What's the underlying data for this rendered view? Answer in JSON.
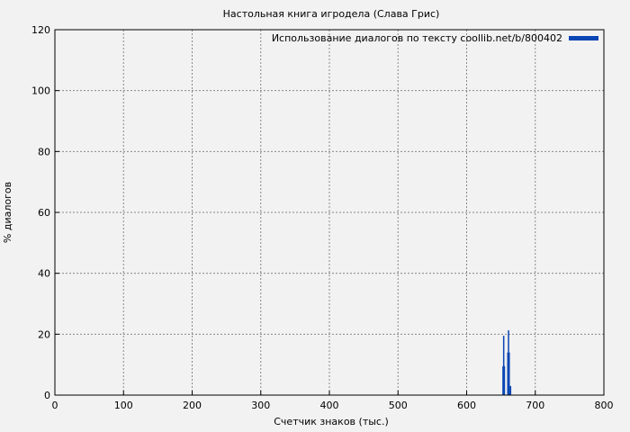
{
  "chart_data": {
    "type": "bar",
    "title": "Настольная книга игродела (Слава Грис)",
    "xlabel": "Счетчик знаков (тыс.)",
    "ylabel": "% диалогов",
    "xlim": [
      0,
      800
    ],
    "ylim": [
      0,
      120
    ],
    "xticks": [
      "0",
      "100",
      "200",
      "300",
      "400",
      "500",
      "600",
      "700",
      "800"
    ],
    "yticks": [
      "0",
      "20",
      "40",
      "60",
      "80",
      "100",
      "120"
    ],
    "grid": true,
    "legend_position": "top-right",
    "series": [
      {
        "name": "Использование диалогов по тексту coollib.net/b/800402",
        "color": "#0a46b4",
        "points": [
          {
            "x": 653,
            "y": 9.5
          },
          {
            "x": 654,
            "y": 19.5
          },
          {
            "x": 655,
            "y": 9.5
          },
          {
            "x": 660,
            "y": 14
          },
          {
            "x": 661,
            "y": 21.3
          },
          {
            "x": 662,
            "y": 14
          },
          {
            "x": 664,
            "y": 3
          }
        ]
      }
    ]
  }
}
